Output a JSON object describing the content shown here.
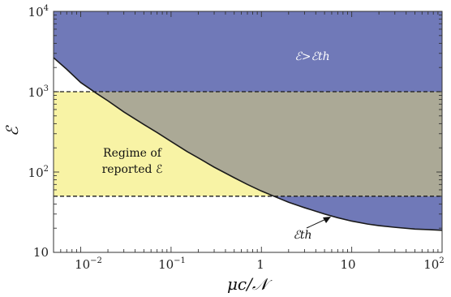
{
  "chart_data": {
    "type": "area",
    "xscale": "log",
    "yscale": "log",
    "xlim": [
      0.005,
      100
    ],
    "ylim": [
      10,
      10000
    ],
    "xlabel": "μc/𝒩",
    "ylabel": "ℰ",
    "x_ticks": [
      {
        "value": 0.01,
        "base": "10",
        "exp": "−2"
      },
      {
        "value": 0.1,
        "base": "10",
        "exp": "−1"
      },
      {
        "value": 1,
        "base": "1",
        "exp": ""
      },
      {
        "value": 10,
        "base": "10",
        "exp": ""
      },
      {
        "value": 100,
        "base": "10",
        "exp": "2"
      }
    ],
    "y_ticks": [
      {
        "value": 10,
        "base": "10",
        "exp": ""
      },
      {
        "value": 100,
        "base": "10",
        "exp": "2"
      },
      {
        "value": 1000,
        "base": "10",
        "exp": "3"
      },
      {
        "value": 10000,
        "base": "10",
        "exp": "4"
      }
    ],
    "threshold_curve": {
      "label": "ℰth",
      "x": [
        0.005,
        0.007,
        0.01,
        0.015,
        0.02,
        0.03,
        0.05,
        0.07,
        0.1,
        0.15,
        0.2,
        0.3,
        0.5,
        0.7,
        1,
        1.5,
        2,
        3,
        5,
        7,
        10,
        15,
        20,
        30,
        50,
        70,
        100
      ],
      "y": [
        2650,
        1900,
        1300,
        950,
        770,
        560,
        390,
        310,
        240,
        180,
        150,
        115,
        85,
        70,
        58,
        48,
        42,
        36,
        30,
        27,
        24.5,
        22.5,
        21.5,
        20.5,
        19.5,
        19.2,
        18.8
      ]
    },
    "reported_band": {
      "y_min": 50,
      "y_max": 1000,
      "label_line1": "Regime of",
      "label_line2": "reported ℰ"
    },
    "region_label": "ℰ>ℰth",
    "colors": {
      "above_threshold": "#7079b8",
      "reported_band": "#f8f3a5",
      "overlap": "#aba996",
      "curve": "#1a1a1a"
    }
  }
}
